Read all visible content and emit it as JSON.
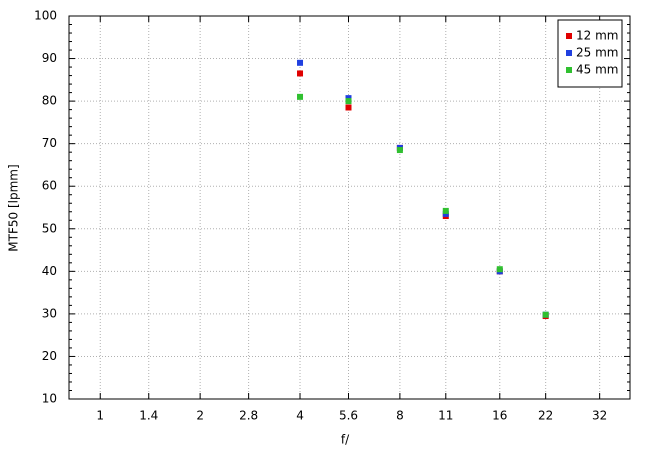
{
  "chart_data": {
    "type": "scatter",
    "x_label": "f/",
    "y_label": "MTF50 [lpmm]",
    "x": [
      4,
      5.6,
      8,
      11,
      16,
      22
    ],
    "series": [
      {
        "name": "12 mm",
        "color": "#e00000",
        "values": [
          86.5,
          78.5,
          69,
          53,
          40,
          29.5
        ]
      },
      {
        "name": "25 mm",
        "color": "#2040e0",
        "values": [
          89,
          80.7,
          69,
          53.5,
          40,
          29.8
        ]
      },
      {
        "name": "45 mm",
        "color": "#30c030",
        "values": [
          81,
          80,
          68.5,
          54.2,
          40.5,
          29.8
        ]
      }
    ],
    "xscale": "log",
    "xlim": [
      0.805,
      39.5
    ],
    "xticks": [
      1,
      1.4,
      2,
      2.8,
      4,
      5.6,
      8,
      11,
      16,
      22,
      32
    ],
    "ylim": [
      10,
      100
    ],
    "yticks": [
      10,
      20,
      30,
      40,
      50,
      60,
      70,
      80,
      90,
      100
    ],
    "grid": true,
    "legend": "upper right"
  }
}
